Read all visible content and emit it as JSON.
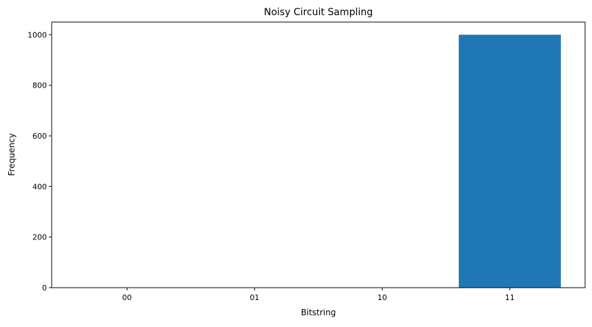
{
  "chart_data": {
    "type": "bar",
    "title": "Noisy Circuit Sampling",
    "xlabel": "Bitstring",
    "ylabel": "Frequency",
    "categories": [
      "00",
      "01",
      "10",
      "11"
    ],
    "values": [
      0,
      0,
      0,
      1000
    ],
    "ylim": [
      0,
      1050
    ],
    "yticks": [
      0,
      200,
      400,
      600,
      800,
      1000
    ],
    "grid": false,
    "bar_color": "#1f77b4"
  }
}
